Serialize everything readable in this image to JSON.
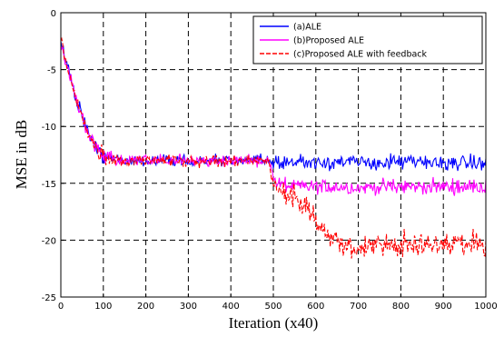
{
  "chart_data": {
    "type": "line",
    "xlabel": "Iteration (x40)",
    "ylabel": "MSE in dB",
    "xlim": [
      0,
      1000
    ],
    "ylim": [
      -25,
      0
    ],
    "xticks": [
      0,
      100,
      200,
      300,
      400,
      500,
      600,
      700,
      800,
      900,
      1000
    ],
    "yticks": [
      0,
      -5,
      -10,
      -15,
      -20,
      -25
    ],
    "grid": true,
    "grid_style": "dashed",
    "legend_position": "top-right",
    "series": [
      {
        "name": "(a)ALE",
        "color": "#0000ff",
        "style": "solid",
        "x": [
          0,
          20,
          40,
          60,
          80,
          100,
          120,
          150,
          200,
          250,
          300,
          350,
          400,
          450,
          490,
          500,
          520,
          550,
          600,
          650,
          700,
          750,
          800,
          850,
          900,
          950,
          1000
        ],
        "y": [
          -2.5,
          -5.5,
          -8.0,
          -10.2,
          -11.7,
          -12.6,
          -12.9,
          -13.0,
          -13.0,
          -13.0,
          -13.0,
          -13.0,
          -13.0,
          -13.0,
          -13.0,
          -13.1,
          -13.1,
          -13.1,
          -13.1,
          -13.1,
          -13.2,
          -13.2,
          -13.1,
          -13.2,
          -13.2,
          -13.2,
          -13.3
        ]
      },
      {
        "name": "(b)Proposed ALE",
        "color": "#ff00ff",
        "style": "solid",
        "x": [
          0,
          20,
          40,
          60,
          80,
          100,
          120,
          150,
          200,
          250,
          300,
          350,
          400,
          450,
          490,
          500,
          510,
          530,
          560,
          600,
          650,
          700,
          750,
          800,
          850,
          900,
          950,
          1000
        ],
        "y": [
          -2.5,
          -5.5,
          -8.0,
          -10.2,
          -11.7,
          -12.6,
          -12.9,
          -13.0,
          -13.0,
          -13.0,
          -13.0,
          -13.0,
          -13.0,
          -13.0,
          -13.0,
          -14.6,
          -15.0,
          -15.2,
          -15.3,
          -15.3,
          -15.3,
          -15.4,
          -15.3,
          -15.3,
          -15.3,
          -15.3,
          -15.3,
          -15.3
        ]
      },
      {
        "name": "(c)Proposed ALE with feedback",
        "color": "#ff0000",
        "style": "dashed",
        "x": [
          0,
          20,
          40,
          60,
          80,
          100,
          120,
          150,
          200,
          250,
          300,
          350,
          400,
          450,
          490,
          500,
          520,
          550,
          580,
          600,
          630,
          660,
          690,
          720,
          750,
          800,
          850,
          900,
          950,
          1000
        ],
        "y": [
          -2.5,
          -5.5,
          -8.0,
          -10.2,
          -11.7,
          -12.6,
          -12.9,
          -13.0,
          -13.0,
          -13.0,
          -13.0,
          -13.0,
          -13.0,
          -13.0,
          -13.0,
          -15.3,
          -15.5,
          -16.3,
          -17.4,
          -18.3,
          -19.5,
          -20.4,
          -20.8,
          -20.7,
          -20.5,
          -20.4,
          -20.4,
          -20.3,
          -20.3,
          -20.4
        ]
      }
    ]
  }
}
